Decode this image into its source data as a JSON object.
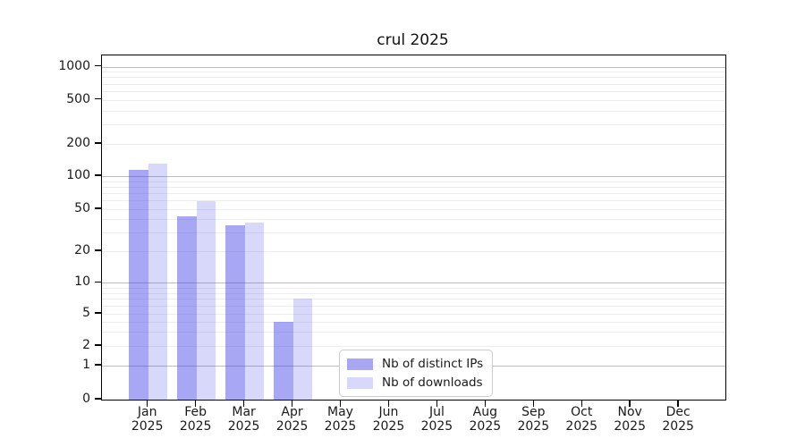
{
  "figure": {
    "background": "#ffffff",
    "text_color": "#1a1a1a"
  },
  "chart_data": {
    "type": "bar",
    "title": "crul 2025",
    "xlabel": "",
    "ylabel": "",
    "x_months": [
      "Jan",
      "Feb",
      "Mar",
      "Apr",
      "May",
      "Jun",
      "Jul",
      "Aug",
      "Sep",
      "Oct",
      "Nov",
      "Dec"
    ],
    "x_year": "2025",
    "series": [
      {
        "name": "Nb of distinct IPs",
        "color": "rgba(60,60,230,0.45)",
        "values": [
          114,
          43,
          35,
          4,
          0,
          0,
          0,
          0,
          0,
          0,
          0,
          0
        ]
      },
      {
        "name": "Nb of downloads",
        "color": "rgba(60,60,230,0.20)",
        "values": [
          131,
          59,
          37,
          7,
          0,
          0,
          0,
          0,
          0,
          0,
          0,
          0
        ]
      }
    ],
    "y_ticks": [
      0,
      1,
      2,
      5,
      10,
      20,
      50,
      100,
      200,
      500,
      1000
    ],
    "y_scale": "log 1-1000 with linear 0-1 segment",
    "ylim": [
      0,
      1150
    ],
    "grid": {
      "orientation": "horizontal",
      "major_at": [
        1,
        10,
        100,
        1000
      ],
      "major_color": "#bdbdbd",
      "minor_color": "#ededed"
    },
    "legend": {
      "position": "lower center",
      "border_color": "#cccccc",
      "entries": [
        "Nb of distinct IPs",
        "Nb of downloads"
      ]
    }
  }
}
